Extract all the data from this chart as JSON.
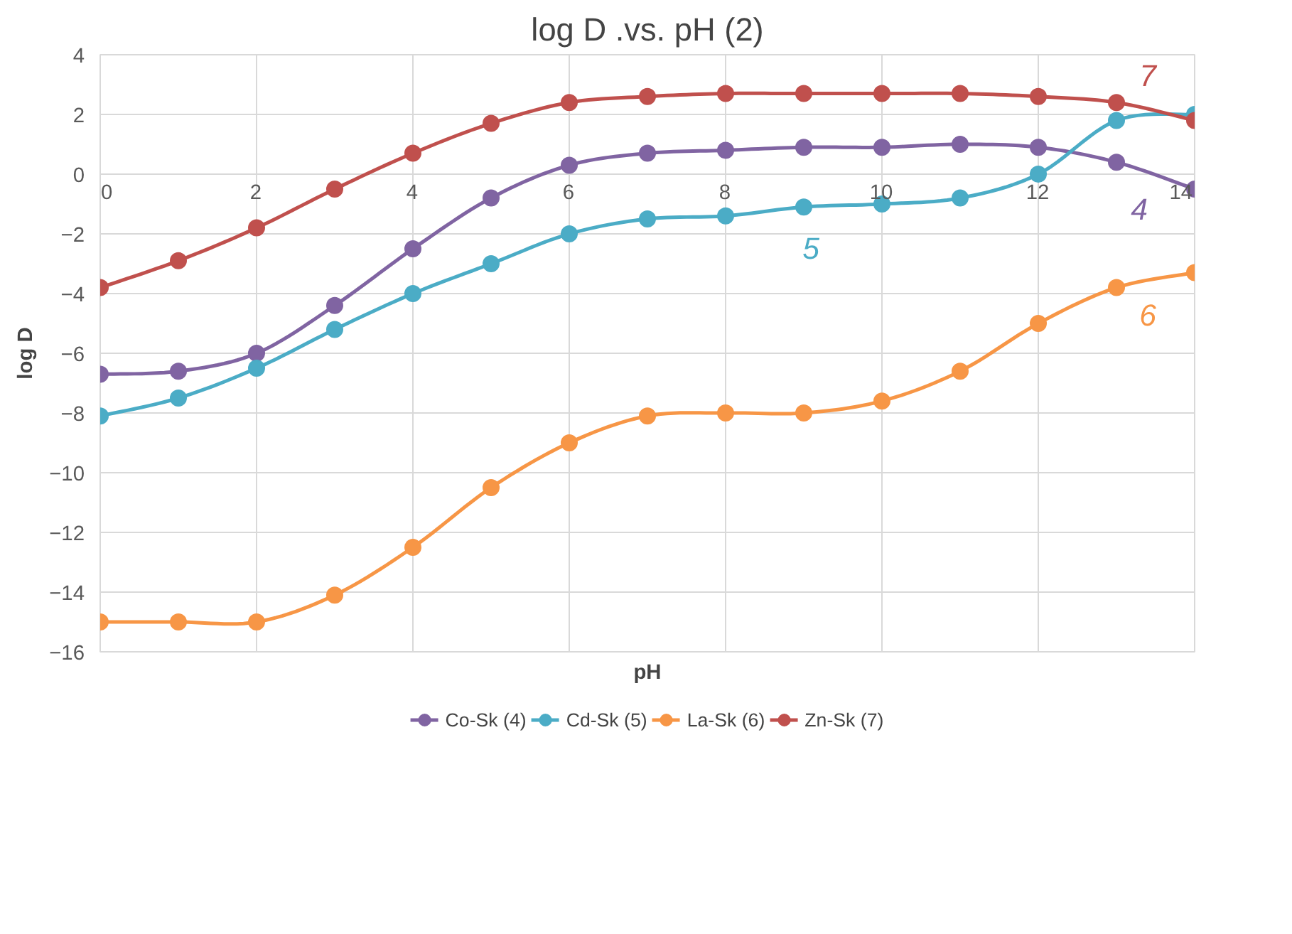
{
  "chart_data": {
    "type": "line",
    "title": "log D .vs. pH (2)",
    "xlabel": "pH",
    "ylabel": "log D",
    "x": [
      0,
      1,
      2,
      3,
      4,
      5,
      6,
      7,
      8,
      9,
      10,
      11,
      12,
      13,
      14
    ],
    "series": [
      {
        "name": "Co-Sk (4)",
        "color": "#8064a2",
        "values": [
          -6.7,
          -6.6,
          -6.0,
          -4.4,
          -2.5,
          -0.8,
          0.3,
          0.7,
          0.8,
          0.9,
          0.9,
          1.0,
          0.9,
          0.4,
          -0.5
        ]
      },
      {
        "name": "Cd-Sk (5)",
        "color": "#4bacc6",
        "values": [
          -8.1,
          -7.5,
          -6.5,
          -5.2,
          -4.0,
          -3.0,
          -2.0,
          -1.5,
          -1.4,
          -1.1,
          -1.0,
          -0.8,
          0.0,
          1.8,
          2.0
        ]
      },
      {
        "name": "La-Sk (6)",
        "color": "#f79646",
        "values": [
          -15.0,
          -15.0,
          -15.0,
          -14.1,
          -12.5,
          -10.5,
          -9.0,
          -8.1,
          -8.0,
          -8.0,
          -7.6,
          -6.6,
          -5.0,
          -3.8,
          -3.3
        ]
      },
      {
        "name": "Zn-Sk (7)",
        "color": "#c0504d",
        "values": [
          -3.8,
          -2.9,
          -1.8,
          -0.5,
          0.7,
          1.7,
          2.4,
          2.6,
          2.7,
          2.7,
          2.7,
          2.7,
          2.6,
          2.4,
          1.8
        ]
      }
    ],
    "annotations": [
      "4",
      "5",
      "6",
      "7"
    ],
    "xlim": [
      0,
      14
    ],
    "xticks": [
      0,
      2,
      4,
      6,
      8,
      10,
      12,
      14
    ],
    "ylim": [
      -16,
      4
    ],
    "yticks": [
      -16,
      -14,
      -12,
      -10,
      -8,
      -6,
      -4,
      -2,
      0,
      2,
      4
    ],
    "grid": true,
    "legend": "bottom",
    "marker": "circle",
    "line_style": "solid"
  }
}
